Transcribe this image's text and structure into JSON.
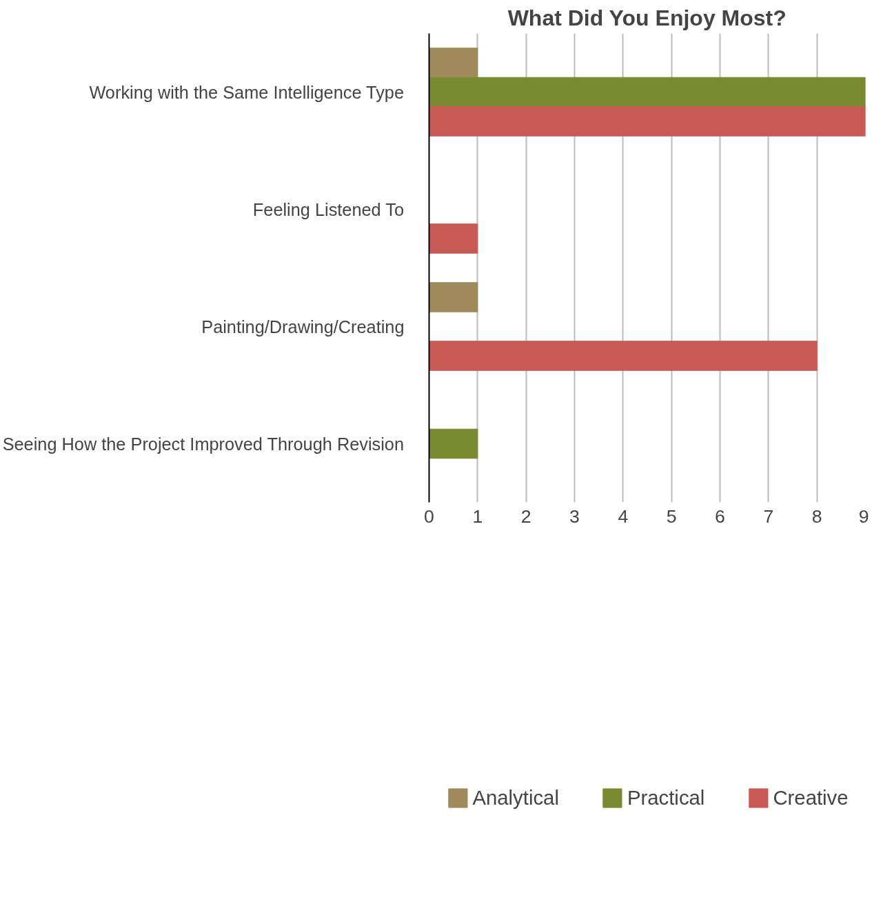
{
  "chart_data": {
    "type": "bar",
    "orientation": "horizontal",
    "title": "What Did You Enjoy Most?",
    "categories": [
      "Working with the Same Intelligence Type",
      "Feeling Listened To",
      "Painting/Drawing/Creating",
      "Seeing How the Project Improved Through Revision"
    ],
    "series": [
      {
        "name": "Analytical",
        "color": "#a08a5c",
        "values": [
          1,
          null,
          1,
          null
        ]
      },
      {
        "name": "Practical",
        "color": "#7a8a30",
        "values": [
          9,
          null,
          null,
          1
        ]
      },
      {
        "name": "Creative",
        "color": "#c85a55",
        "values": [
          9,
          1,
          8,
          null
        ]
      }
    ],
    "xlim": [
      0,
      9
    ],
    "xticks": [
      0,
      1,
      2,
      3,
      4,
      5,
      6,
      7,
      8,
      9
    ],
    "grid": "x",
    "legend": "bottom"
  }
}
